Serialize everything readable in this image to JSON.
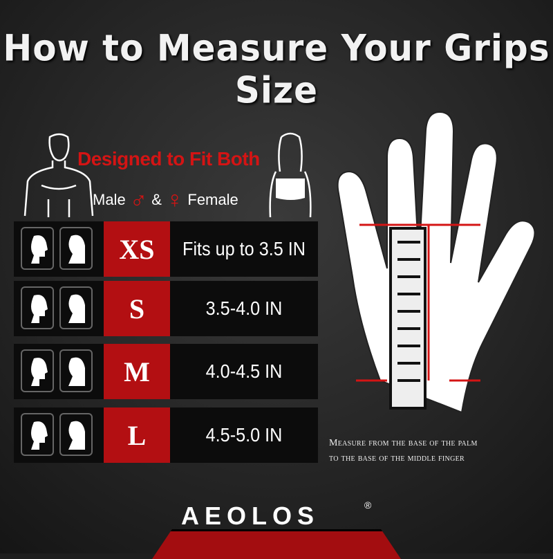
{
  "title": "How to Measure Your Grips Size",
  "designed": "Designed to Fit Both",
  "male": "Male",
  "amp": "&",
  "female": "Female",
  "male_symbol": "♂",
  "female_symbol": "♀",
  "sizes": [
    {
      "size": "XS",
      "range": "Fits up to 3.5 IN"
    },
    {
      "size": "S",
      "range": "3.5-4.0 IN"
    },
    {
      "size": "M",
      "range": "4.0-4.5 IN"
    },
    {
      "size": "L",
      "range": "4.5-5.0 IN"
    }
  ],
  "measure_line1": "Measure from the base of the palm",
  "measure_line2": "to the base of the middle finger",
  "brand": "AEOLOS",
  "registered": "®",
  "colors": {
    "accent": "#b30f12",
    "background": "#262626"
  }
}
